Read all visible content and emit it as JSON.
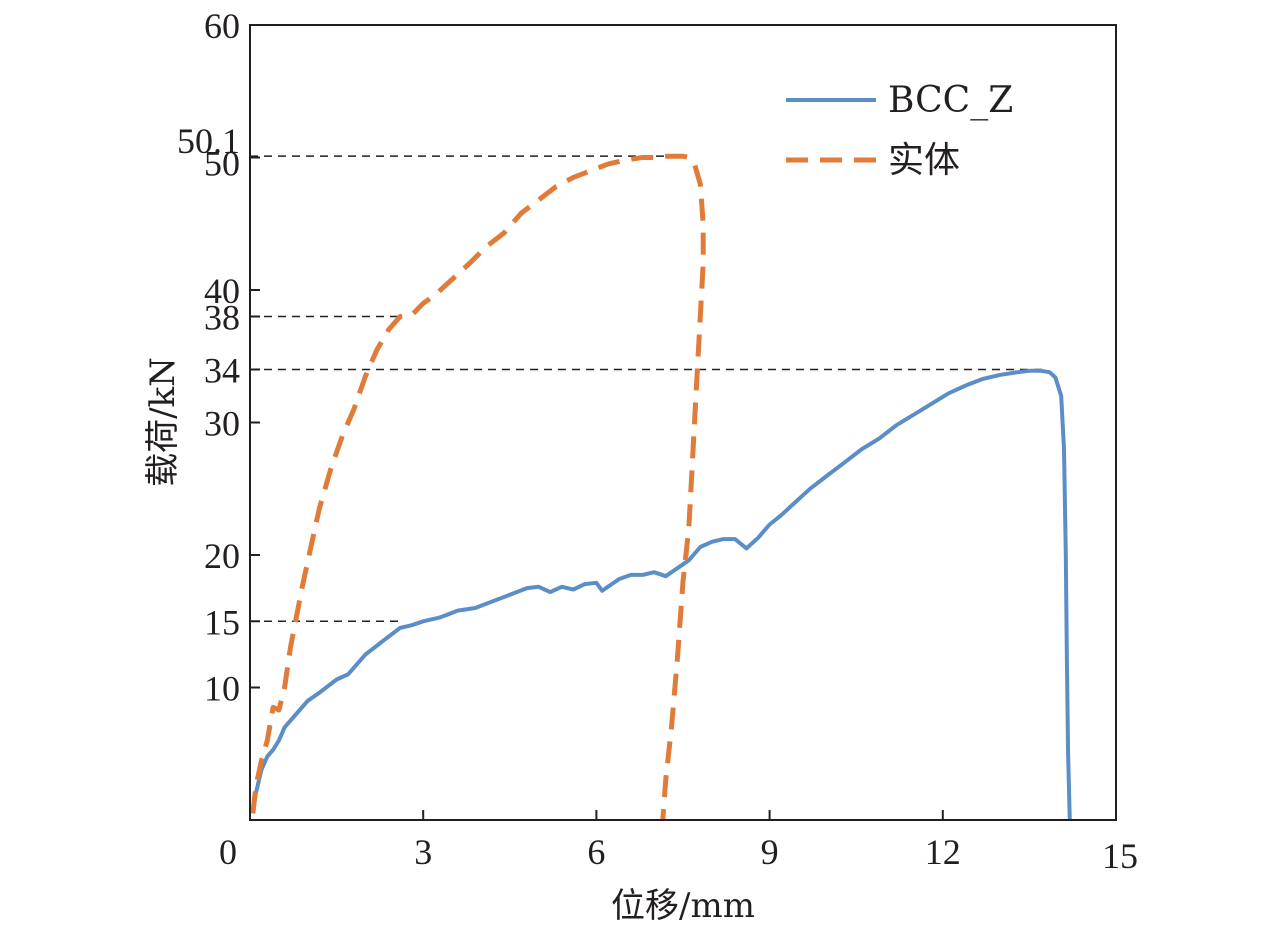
{
  "chart_data": {
    "type": "line",
    "xlabel": "位移/mm",
    "ylabel": "载荷/kN",
    "xlim": [
      0,
      15
    ],
    "ylim": [
      0,
      60
    ],
    "x_ticks": [
      0,
      3,
      6,
      9,
      12,
      15
    ],
    "y_ticks": [
      10,
      15,
      20,
      30,
      34,
      38,
      40,
      50,
      50.1,
      60
    ],
    "grid": false,
    "legend_position": "top-right",
    "reference_lines": [
      {
        "y": 50.1,
        "x_end": 7.5
      },
      {
        "y": 38,
        "x_end": 2.6
      },
      {
        "y": 34,
        "x_end": 13.8
      },
      {
        "y": 15,
        "x_end": 2.6
      }
    ],
    "series": [
      {
        "name": "BCC_Z",
        "color": "#5b8ec6",
        "style": "solid",
        "x": [
          0.05,
          0.1,
          0.2,
          0.3,
          0.4,
          0.5,
          0.6,
          0.8,
          1.0,
          1.2,
          1.5,
          1.7,
          2.0,
          2.3,
          2.6,
          2.8,
          3.0,
          3.3,
          3.6,
          3.9,
          4.2,
          4.5,
          4.8,
          5.0,
          5.2,
          5.4,
          5.6,
          5.8,
          6.0,
          6.1,
          6.2,
          6.4,
          6.6,
          6.8,
          7.0,
          7.2,
          7.4,
          7.6,
          7.8,
          8.0,
          8.2,
          8.4,
          8.6,
          8.8,
          9.0,
          9.2,
          9.4,
          9.7,
          10.0,
          10.3,
          10.6,
          10.9,
          11.2,
          11.5,
          11.8,
          12.1,
          12.4,
          12.7,
          13.0,
          13.3,
          13.5,
          13.7,
          13.85,
          13.95,
          14.05,
          14.1,
          14.13,
          14.15,
          14.17,
          14.2
        ],
        "values": [
          0.5,
          2.0,
          3.8,
          4.8,
          5.3,
          6.0,
          7.0,
          8.0,
          9.0,
          9.6,
          10.6,
          11.0,
          12.5,
          13.5,
          14.5,
          14.7,
          15.0,
          15.3,
          15.8,
          16.0,
          16.5,
          17.0,
          17.5,
          17.6,
          17.2,
          17.6,
          17.4,
          17.8,
          17.9,
          17.3,
          17.6,
          18.2,
          18.5,
          18.5,
          18.7,
          18.4,
          19.0,
          19.6,
          20.6,
          21.0,
          21.2,
          21.2,
          20.5,
          21.3,
          22.3,
          23.0,
          23.8,
          25.0,
          26.0,
          27.0,
          28.0,
          28.8,
          29.8,
          30.6,
          31.4,
          32.2,
          32.8,
          33.3,
          33.6,
          33.8,
          33.9,
          33.9,
          33.8,
          33.4,
          32.0,
          28.0,
          20.0,
          12.0,
          5.0,
          0.0
        ]
      },
      {
        "name": "实体",
        "color": "#e07b39",
        "style": "dashed",
        "x": [
          0.05,
          0.1,
          0.2,
          0.3,
          0.4,
          0.5,
          0.6,
          0.7,
          0.9,
          1.0,
          1.2,
          1.4,
          1.6,
          1.8,
          2.0,
          2.2,
          2.4,
          2.6,
          2.8,
          3.0,
          3.2,
          3.5,
          3.8,
          4.1,
          4.4,
          4.7,
          5.0,
          5.3,
          5.6,
          5.9,
          6.2,
          6.5,
          6.8,
          7.0,
          7.2,
          7.4,
          7.5,
          7.6,
          7.7,
          7.8,
          7.85,
          7.85,
          7.8,
          7.75,
          7.7,
          7.65,
          7.6,
          7.5,
          7.45,
          7.4,
          7.3,
          7.2,
          7.15
        ],
        "values": [
          0.5,
          2.5,
          4.5,
          6.0,
          8.5,
          8.3,
          10.0,
          13.0,
          17.5,
          19.5,
          23.5,
          26.5,
          29.0,
          31.0,
          33.5,
          35.5,
          37.0,
          38.0,
          38.1,
          39.0,
          39.6,
          40.8,
          42.0,
          43.3,
          44.3,
          45.8,
          46.8,
          47.8,
          48.5,
          49.0,
          49.5,
          49.8,
          50.0,
          50.0,
          50.1,
          50.1,
          50.1,
          50.0,
          49.5,
          48.0,
          45.0,
          42.0,
          38.0,
          34.0,
          30.0,
          26.0,
          22.0,
          18.0,
          15.0,
          12.0,
          7.0,
          3.0,
          0.0
        ]
      }
    ]
  }
}
